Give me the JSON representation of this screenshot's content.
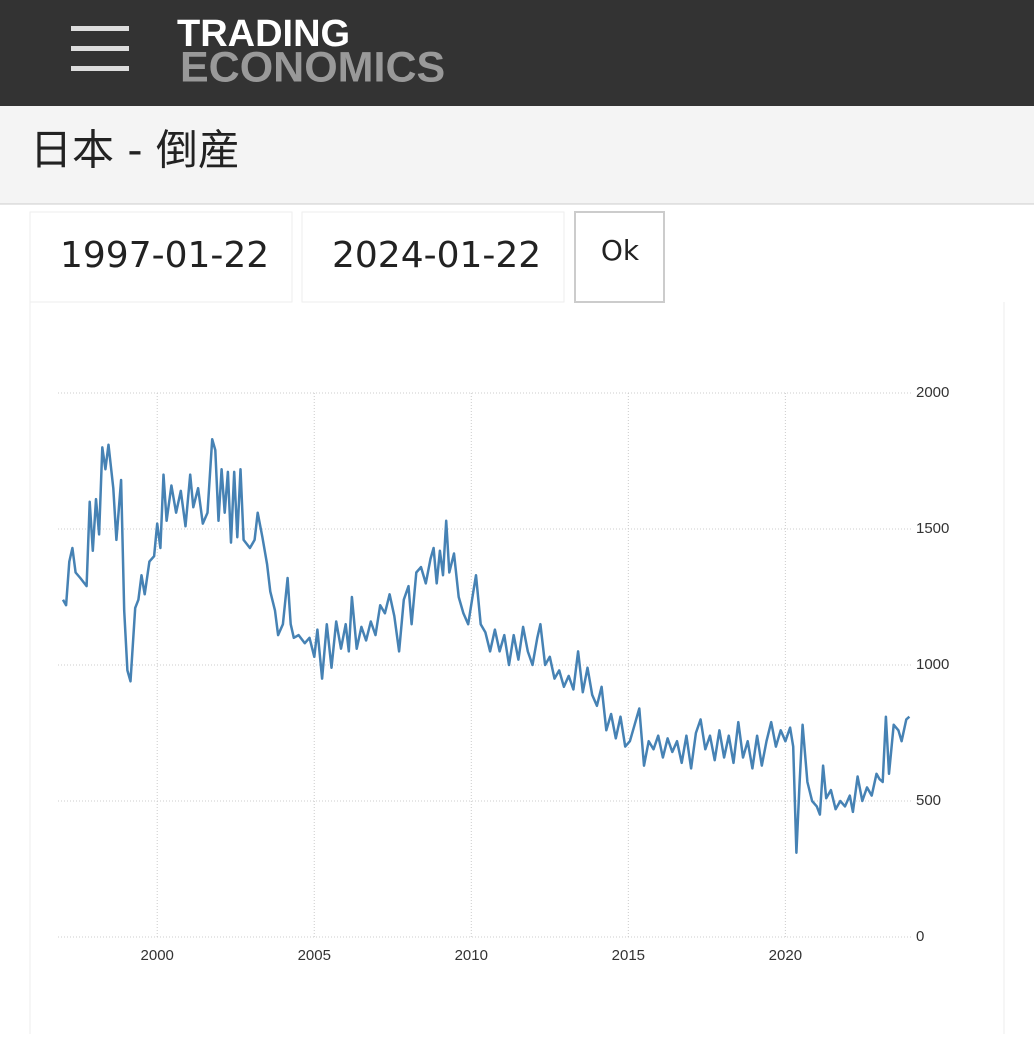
{
  "header": {
    "logo_top": "TRADING",
    "logo_bottom": "ECONOMICS"
  },
  "page_title": "日本 - 倒産",
  "form": {
    "start_date": "1997-01-22",
    "end_date": "2024-01-22",
    "button": "Ok"
  },
  "chart_data": {
    "type": "line",
    "color": "#4682b4",
    "grid": true,
    "xlim": [
      1997,
      2024
    ],
    "xticks": [
      2000,
      2005,
      2010,
      2015,
      2020
    ],
    "ylim": [
      0,
      2000
    ],
    "yticks": [
      0,
      500,
      1000,
      1500,
      2000
    ],
    "x": [
      1997.0,
      1997.1,
      1997.2,
      1997.3,
      1997.4,
      1997.55,
      1997.75,
      1997.85,
      1997.95,
      1998.05,
      1998.15,
      1998.25,
      1998.35,
      1998.45,
      1998.6,
      1998.7,
      1998.85,
      1998.95,
      1999.05,
      1999.15,
      1999.3,
      1999.4,
      1999.5,
      1999.6,
      1999.75,
      1999.9,
      2000.0,
      2000.1,
      2000.2,
      2000.3,
      2000.45,
      2000.6,
      2000.75,
      2000.9,
      2001.05,
      2001.15,
      2001.3,
      2001.45,
      2001.6,
      2001.75,
      2001.85,
      2001.95,
      2002.05,
      2002.15,
      2002.25,
      2002.35,
      2002.45,
      2002.55,
      2002.65,
      2002.75,
      2002.95,
      2003.1,
      2003.2,
      2003.35,
      2003.5,
      2003.6,
      2003.75,
      2003.85,
      2004.0,
      2004.15,
      2004.25,
      2004.35,
      2004.5,
      2004.7,
      2004.85,
      2005.0,
      2005.1,
      2005.25,
      2005.4,
      2005.55,
      2005.7,
      2005.85,
      2006.0,
      2006.1,
      2006.2,
      2006.35,
      2006.5,
      2006.65,
      2006.8,
      2006.95,
      2007.1,
      2007.25,
      2007.4,
      2007.55,
      2007.7,
      2007.85,
      2008.0,
      2008.1,
      2008.25,
      2008.4,
      2008.55,
      2008.7,
      2008.8,
      2008.9,
      2009.0,
      2009.1,
      2009.2,
      2009.3,
      2009.45,
      2009.6,
      2009.75,
      2009.9,
      2010.05,
      2010.15,
      2010.3,
      2010.45,
      2010.6,
      2010.75,
      2010.9,
      2011.05,
      2011.2,
      2011.35,
      2011.5,
      2011.65,
      2011.8,
      2011.95,
      2012.1,
      2012.2,
      2012.35,
      2012.5,
      2012.65,
      2012.8,
      2012.95,
      2013.1,
      2013.25,
      2013.4,
      2013.55,
      2013.7,
      2013.85,
      2014.0,
      2014.15,
      2014.3,
      2014.45,
      2014.6,
      2014.75,
      2014.9,
      2015.05,
      2015.2,
      2015.35,
      2015.5,
      2015.65,
      2015.8,
      2015.95,
      2016.1,
      2016.25,
      2016.4,
      2016.55,
      2016.7,
      2016.85,
      2017.0,
      2017.15,
      2017.3,
      2017.45,
      2017.6,
      2017.75,
      2017.9,
      2018.05,
      2018.2,
      2018.35,
      2018.5,
      2018.65,
      2018.8,
      2018.95,
      2019.1,
      2019.25,
      2019.4,
      2019.55,
      2019.7,
      2019.85,
      2020.0,
      2020.15,
      2020.25,
      2020.35,
      2020.45,
      2020.55,
      2020.7,
      2020.85,
      2021.0,
      2021.1,
      2021.2,
      2021.3,
      2021.45,
      2021.6,
      2021.75,
      2021.9,
      2022.05,
      2022.15,
      2022.3,
      2022.45,
      2022.6,
      2022.75,
      2022.9,
      2023.0,
      2023.1,
      2023.2,
      2023.3,
      2023.45,
      2023.6,
      2023.7,
      2023.85,
      2023.95
    ],
    "values": [
      1240,
      1220,
      1380,
      1430,
      1340,
      1320,
      1290,
      1600,
      1420,
      1610,
      1480,
      1800,
      1720,
      1810,
      1650,
      1460,
      1680,
      1200,
      980,
      940,
      1210,
      1240,
      1330,
      1260,
      1380,
      1400,
      1520,
      1430,
      1700,
      1530,
      1660,
      1560,
      1640,
      1510,
      1700,
      1580,
      1650,
      1520,
      1560,
      1830,
      1790,
      1530,
      1720,
      1560,
      1710,
      1450,
      1710,
      1470,
      1720,
      1460,
      1430,
      1460,
      1560,
      1470,
      1370,
      1270,
      1200,
      1110,
      1150,
      1320,
      1150,
      1100,
      1110,
      1080,
      1100,
      1030,
      1130,
      950,
      1150,
      990,
      1160,
      1060,
      1150,
      1050,
      1250,
      1060,
      1140,
      1090,
      1160,
      1110,
      1220,
      1190,
      1260,
      1180,
      1050,
      1240,
      1290,
      1150,
      1340,
      1360,
      1300,
      1390,
      1430,
      1300,
      1420,
      1330,
      1530,
      1340,
      1410,
      1250,
      1190,
      1150,
      1260,
      1330,
      1150,
      1120,
      1050,
      1130,
      1050,
      1110,
      1000,
      1110,
      1020,
      1140,
      1050,
      1000,
      1100,
      1150,
      1000,
      1030,
      950,
      980,
      920,
      960,
      910,
      1050,
      900,
      990,
      890,
      850,
      920,
      760,
      820,
      730,
      810,
      700,
      720,
      780,
      840,
      630,
      720,
      690,
      740,
      660,
      730,
      680,
      720,
      640,
      740,
      620,
      750,
      800,
      690,
      740,
      650,
      760,
      660,
      740,
      640,
      790,
      660,
      720,
      620,
      740,
      630,
      720,
      790,
      700,
      760,
      720,
      770,
      700,
      310,
      560,
      780,
      570,
      500,
      480,
      450,
      630,
      510,
      540,
      470,
      500,
      480,
      520,
      460,
      590,
      500,
      550,
      520,
      600,
      580,
      570,
      810,
      600,
      780,
      760,
      720,
      800,
      810
    ]
  }
}
